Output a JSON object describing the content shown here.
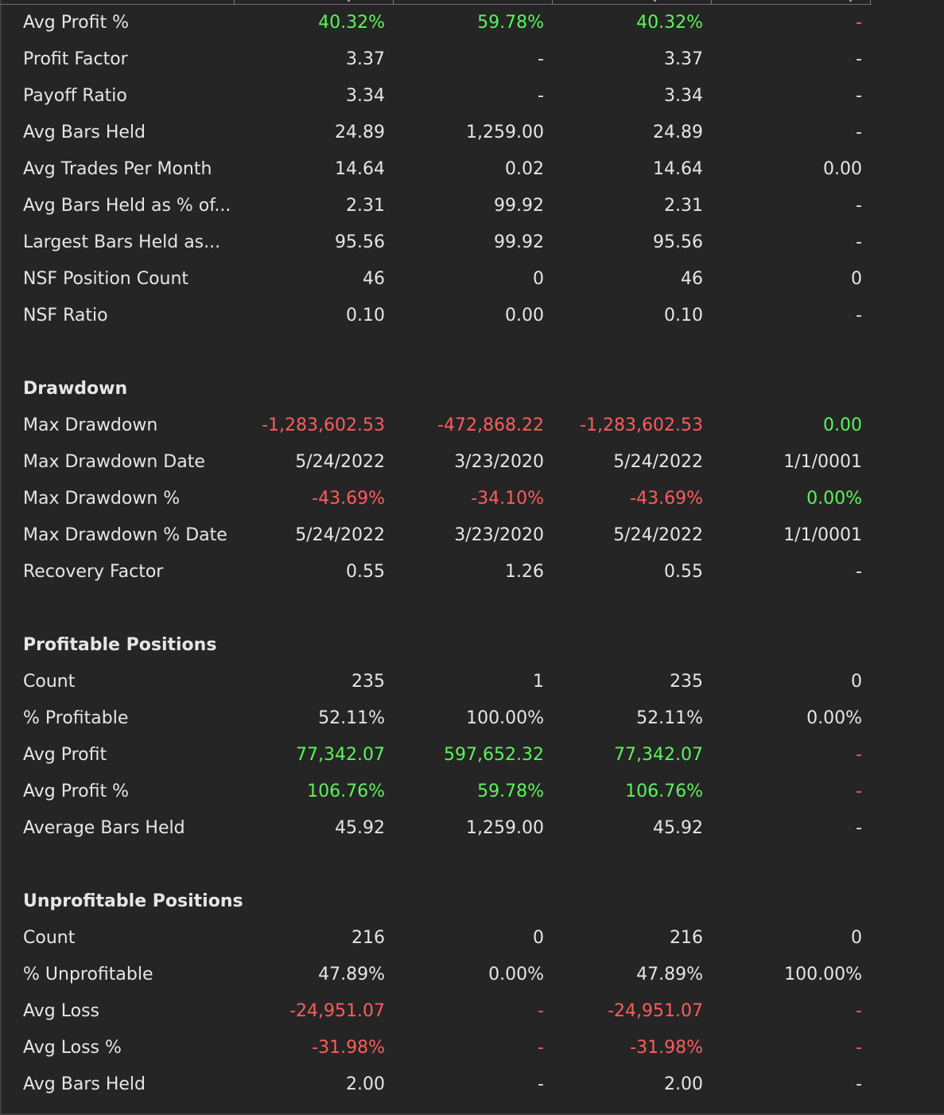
{
  "colors": {
    "background": "#252525",
    "text": "#e6e6e6",
    "positive": "#5af55a",
    "negative": "#ff5c5c"
  },
  "rows": [
    {
      "type": "data",
      "label": "Avg Profit %",
      "values": [
        {
          "text": "40.32%",
          "tone": "pos"
        },
        {
          "text": "59.78%",
          "tone": "pos"
        },
        {
          "text": "40.32%",
          "tone": "pos"
        },
        {
          "text": "-",
          "tone": "neg"
        }
      ]
    },
    {
      "type": "data",
      "label": "Profit Factor",
      "values": [
        {
          "text": "3.37",
          "tone": "plain"
        },
        {
          "text": "-",
          "tone": "plain"
        },
        {
          "text": "3.37",
          "tone": "plain"
        },
        {
          "text": "-",
          "tone": "plain"
        }
      ]
    },
    {
      "type": "data",
      "label": "Payoff Ratio",
      "values": [
        {
          "text": "3.34",
          "tone": "plain"
        },
        {
          "text": "-",
          "tone": "plain"
        },
        {
          "text": "3.34",
          "tone": "plain"
        },
        {
          "text": "-",
          "tone": "plain"
        }
      ]
    },
    {
      "type": "data",
      "label": "Avg Bars Held",
      "values": [
        {
          "text": "24.89",
          "tone": "plain"
        },
        {
          "text": "1,259.00",
          "tone": "plain"
        },
        {
          "text": "24.89",
          "tone": "plain"
        },
        {
          "text": "-",
          "tone": "plain"
        }
      ]
    },
    {
      "type": "data",
      "label": "Avg Trades Per Month",
      "values": [
        {
          "text": "14.64",
          "tone": "plain"
        },
        {
          "text": "0.02",
          "tone": "plain"
        },
        {
          "text": "14.64",
          "tone": "plain"
        },
        {
          "text": "0.00",
          "tone": "plain"
        }
      ]
    },
    {
      "type": "data",
      "label": "Avg Bars Held as % of...",
      "values": [
        {
          "text": "2.31",
          "tone": "plain"
        },
        {
          "text": "99.92",
          "tone": "plain"
        },
        {
          "text": "2.31",
          "tone": "plain"
        },
        {
          "text": "-",
          "tone": "plain"
        }
      ]
    },
    {
      "type": "data",
      "label": "Largest Bars Held as...",
      "values": [
        {
          "text": "95.56",
          "tone": "plain"
        },
        {
          "text": "99.92",
          "tone": "plain"
        },
        {
          "text": "95.56",
          "tone": "plain"
        },
        {
          "text": "-",
          "tone": "plain"
        }
      ]
    },
    {
      "type": "data",
      "label": "NSF Position Count",
      "values": [
        {
          "text": "46",
          "tone": "plain"
        },
        {
          "text": "0",
          "tone": "plain"
        },
        {
          "text": "46",
          "tone": "plain"
        },
        {
          "text": "0",
          "tone": "plain"
        }
      ]
    },
    {
      "type": "data",
      "label": "NSF Ratio",
      "values": [
        {
          "text": "0.10",
          "tone": "plain"
        },
        {
          "text": "0.00",
          "tone": "plain"
        },
        {
          "text": "0.10",
          "tone": "plain"
        },
        {
          "text": "-",
          "tone": "plain"
        }
      ]
    },
    {
      "type": "spacer"
    },
    {
      "type": "section",
      "label": "Drawdown"
    },
    {
      "type": "data",
      "label": "Max Drawdown",
      "values": [
        {
          "text": "-1,283,602.53",
          "tone": "neg"
        },
        {
          "text": "-472,868.22",
          "tone": "neg"
        },
        {
          "text": "-1,283,602.53",
          "tone": "neg"
        },
        {
          "text": "0.00",
          "tone": "pos"
        }
      ]
    },
    {
      "type": "data",
      "label": "Max Drawdown Date",
      "values": [
        {
          "text": "5/24/2022",
          "tone": "plain"
        },
        {
          "text": "3/23/2020",
          "tone": "plain"
        },
        {
          "text": "5/24/2022",
          "tone": "plain"
        },
        {
          "text": "1/1/0001",
          "tone": "plain"
        }
      ]
    },
    {
      "type": "data",
      "label": "Max Drawdown %",
      "values": [
        {
          "text": "-43.69%",
          "tone": "neg"
        },
        {
          "text": "-34.10%",
          "tone": "neg"
        },
        {
          "text": "-43.69%",
          "tone": "neg"
        },
        {
          "text": "0.00%",
          "tone": "pos"
        }
      ]
    },
    {
      "type": "data",
      "label": "Max Drawdown % Date",
      "values": [
        {
          "text": "5/24/2022",
          "tone": "plain"
        },
        {
          "text": "3/23/2020",
          "tone": "plain"
        },
        {
          "text": "5/24/2022",
          "tone": "plain"
        },
        {
          "text": "1/1/0001",
          "tone": "plain"
        }
      ]
    },
    {
      "type": "data",
      "label": "Recovery Factor",
      "values": [
        {
          "text": "0.55",
          "tone": "plain"
        },
        {
          "text": "1.26",
          "tone": "plain"
        },
        {
          "text": "0.55",
          "tone": "plain"
        },
        {
          "text": "-",
          "tone": "plain"
        }
      ]
    },
    {
      "type": "spacer"
    },
    {
      "type": "section",
      "label": "Profitable Positions"
    },
    {
      "type": "data",
      "label": "Count",
      "values": [
        {
          "text": "235",
          "tone": "plain"
        },
        {
          "text": "1",
          "tone": "plain"
        },
        {
          "text": "235",
          "tone": "plain"
        },
        {
          "text": "0",
          "tone": "plain"
        }
      ]
    },
    {
      "type": "data",
      "label": "% Profitable",
      "values": [
        {
          "text": "52.11%",
          "tone": "plain"
        },
        {
          "text": "100.00%",
          "tone": "plain"
        },
        {
          "text": "52.11%",
          "tone": "plain"
        },
        {
          "text": "0.00%",
          "tone": "plain"
        }
      ]
    },
    {
      "type": "data",
      "label": "Avg Profit",
      "values": [
        {
          "text": "77,342.07",
          "tone": "pos"
        },
        {
          "text": "597,652.32",
          "tone": "pos"
        },
        {
          "text": "77,342.07",
          "tone": "pos"
        },
        {
          "text": "-",
          "tone": "neg"
        }
      ]
    },
    {
      "type": "data",
      "label": "Avg Profit %",
      "values": [
        {
          "text": "106.76%",
          "tone": "pos"
        },
        {
          "text": "59.78%",
          "tone": "pos"
        },
        {
          "text": "106.76%",
          "tone": "pos"
        },
        {
          "text": "-",
          "tone": "neg"
        }
      ]
    },
    {
      "type": "data",
      "label": "Average Bars Held",
      "values": [
        {
          "text": "45.92",
          "tone": "plain"
        },
        {
          "text": "1,259.00",
          "tone": "plain"
        },
        {
          "text": "45.92",
          "tone": "plain"
        },
        {
          "text": "-",
          "tone": "plain"
        }
      ]
    },
    {
      "type": "spacer"
    },
    {
      "type": "section",
      "label": "Unprofitable Positions"
    },
    {
      "type": "data",
      "label": "Count",
      "values": [
        {
          "text": "216",
          "tone": "plain"
        },
        {
          "text": "0",
          "tone": "plain"
        },
        {
          "text": "216",
          "tone": "plain"
        },
        {
          "text": "0",
          "tone": "plain"
        }
      ]
    },
    {
      "type": "data",
      "label": "% Unprofitable",
      "values": [
        {
          "text": "47.89%",
          "tone": "plain"
        },
        {
          "text": "0.00%",
          "tone": "plain"
        },
        {
          "text": "47.89%",
          "tone": "plain"
        },
        {
          "text": "100.00%",
          "tone": "plain"
        }
      ]
    },
    {
      "type": "data",
      "label": "Avg Loss",
      "values": [
        {
          "text": "-24,951.07",
          "tone": "neg"
        },
        {
          "text": "-",
          "tone": "neg"
        },
        {
          "text": "-24,951.07",
          "tone": "neg"
        },
        {
          "text": "-",
          "tone": "neg"
        }
      ]
    },
    {
      "type": "data",
      "label": "Avg Loss %",
      "values": [
        {
          "text": "-31.98%",
          "tone": "neg"
        },
        {
          "text": "-",
          "tone": "neg"
        },
        {
          "text": "-31.98%",
          "tone": "neg"
        },
        {
          "text": "-",
          "tone": "neg"
        }
      ]
    },
    {
      "type": "data",
      "label": "Avg Bars Held",
      "values": [
        {
          "text": "2.00",
          "tone": "plain"
        },
        {
          "text": "-",
          "tone": "plain"
        },
        {
          "text": "2.00",
          "tone": "plain"
        },
        {
          "text": "-",
          "tone": "plain"
        }
      ]
    }
  ]
}
